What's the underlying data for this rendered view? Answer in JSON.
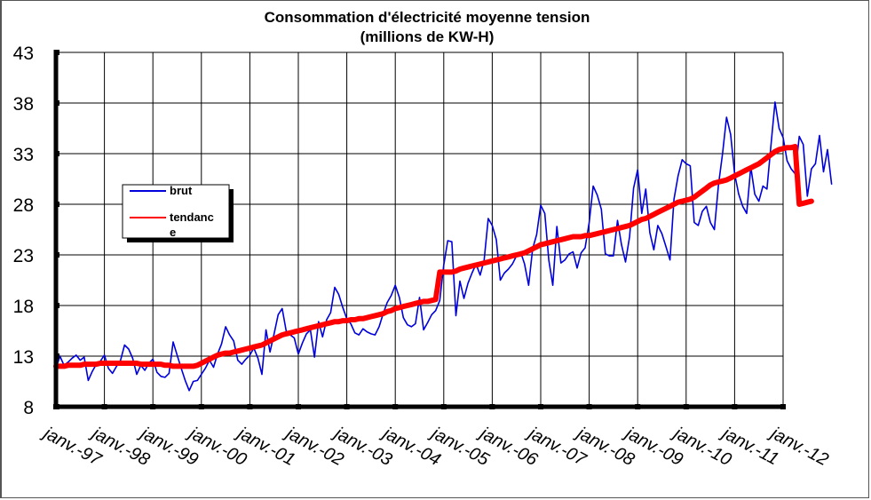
{
  "chart_data": {
    "type": "line",
    "title": "Consommation d'électricité moyenne tension",
    "subtitle": "(millions de KW-H)",
    "xlabel": "",
    "ylabel": "",
    "ylim": [
      8,
      43
    ],
    "yticks": [
      "43",
      "38",
      "33",
      "28",
      "23",
      "18",
      "13",
      "8"
    ],
    "ytick_values": [
      43,
      38,
      33,
      28,
      23,
      18,
      13,
      8
    ],
    "xticks": [
      "janv.-97",
      "janv.-98",
      "janv.-99",
      "janv.-00",
      "janv.-01",
      "janv.-02",
      "janv.-03",
      "janv.-04",
      "janv.-05",
      "janv.-06",
      "janv.-07",
      "janv.-08",
      "janv.-09",
      "janv.-10",
      "janv.-11",
      "janv.-12"
    ],
    "x_unit": "months since janv.-97",
    "xlim": [
      0,
      180
    ],
    "grid": true,
    "legend_position": "left",
    "legend": {
      "brut": "brut",
      "tendance_line1": "tendanc",
      "tendance_line2": "e"
    },
    "colors": {
      "brut": "#0000dd",
      "tendance": "#ff0000",
      "grid": "#000000"
    },
    "series": [
      {
        "name": "brut",
        "values": [
          11.8,
          13.0,
          12.1,
          12.4,
          12.8,
          13.1,
          12.6,
          12.9,
          10.6,
          11.5,
          12.2,
          12.5,
          13.1,
          11.8,
          11.3,
          12.0,
          12.6,
          14.1,
          13.7,
          12.8,
          11.2,
          12.1,
          11.6,
          12.3,
          12.7,
          11.4,
          11.0,
          10.9,
          11.3,
          14.4,
          13.1,
          11.8,
          10.6,
          9.6,
          10.5,
          10.6,
          11.2,
          11.8,
          12.6,
          11.9,
          13.2,
          14.2,
          15.9,
          15.1,
          14.5,
          12.6,
          12.2,
          12.7,
          13.1,
          13.8,
          12.8,
          11.2,
          15.6,
          13.4,
          15.2,
          17.1,
          17.7,
          15.5,
          15.1,
          14.8,
          13.2,
          14.3,
          15.2,
          15.6,
          12.9,
          16.4,
          14.9,
          16.6,
          17.3,
          19.8,
          19.1,
          17.8,
          16.7,
          16.2,
          15.3,
          15.1,
          15.7,
          15.4,
          15.2,
          15.1,
          15.9,
          17.2,
          18.3,
          19.0,
          20.0,
          18.8,
          16.8,
          16.1,
          15.9,
          16.2,
          18.8,
          15.6,
          16.3,
          17.1,
          17.5,
          18.5,
          22.0,
          24.4,
          24.3,
          17.0,
          20.4,
          18.7,
          20.2,
          21.2,
          22.1,
          21.0,
          22.5,
          26.6,
          25.9,
          24.5,
          20.5,
          21.2,
          21.6,
          22.1,
          22.9,
          23.3,
          22.1,
          20.0,
          23.6,
          25.0,
          27.9,
          27.1,
          22.5,
          20.0,
          25.8,
          22.2,
          22.5,
          23.1,
          23.3,
          21.7,
          23.2,
          23.7,
          26.2,
          29.8,
          28.9,
          27.5,
          23.1,
          22.9,
          22.9,
          26.4,
          24.0,
          22.3,
          24.8,
          29.6,
          31.4,
          27.1,
          29.5,
          25.2,
          23.5,
          25.9,
          25.1,
          23.8,
          22.5,
          28.5,
          30.8,
          32.4,
          32.0,
          31.8,
          26.2,
          25.9,
          27.3,
          27.8,
          26.2,
          25.5,
          29.9,
          33.0,
          36.6,
          34.9,
          31.0,
          29.0,
          27.8,
          27.1,
          31.7,
          29.0,
          28.3,
          29.8,
          29.5,
          33.8,
          38.1,
          35.5,
          34.6,
          32.3,
          31.5,
          31.0,
          34.7,
          33.9,
          28.8,
          31.5,
          32.0,
          34.8,
          31.2,
          33.4,
          30.0
        ]
      },
      {
        "name": "tendance",
        "values": [
          12.0,
          12.0,
          12.0,
          12.1,
          12.1,
          12.1,
          12.1,
          12.2,
          12.2,
          12.2,
          12.2,
          12.3,
          12.3,
          12.3,
          12.3,
          12.3,
          12.3,
          12.3,
          12.3,
          12.3,
          12.3,
          12.2,
          12.2,
          12.2,
          12.2,
          12.2,
          12.2,
          12.1,
          12.1,
          12.0,
          12.0,
          12.0,
          12.0,
          12.0,
          12.0,
          12.1,
          12.3,
          12.5,
          12.7,
          12.9,
          13.1,
          13.2,
          13.3,
          13.3,
          13.4,
          13.5,
          13.6,
          13.7,
          13.8,
          13.9,
          14.0,
          14.1,
          14.3,
          14.5,
          14.7,
          14.9,
          15.1,
          15.2,
          15.3,
          15.4,
          15.5,
          15.6,
          15.7,
          15.8,
          15.9,
          16.0,
          16.1,
          16.2,
          16.3,
          16.4,
          16.4,
          16.5,
          16.5,
          16.6,
          16.6,
          16.7,
          16.7,
          16.8,
          16.9,
          17.0,
          17.1,
          17.2,
          17.4,
          17.5,
          17.7,
          17.8,
          17.9,
          18.0,
          18.1,
          18.2,
          18.3,
          18.4,
          18.4,
          18.5,
          18.6,
          21.3,
          21.3,
          21.3,
          21.3,
          21.4,
          21.6,
          21.7,
          21.8,
          21.9,
          22.0,
          22.1,
          22.2,
          22.3,
          22.4,
          22.5,
          22.6,
          22.7,
          22.8,
          22.9,
          23.0,
          23.1,
          23.2,
          23.4,
          23.6,
          23.8,
          24.0,
          24.1,
          24.2,
          24.3,
          24.4,
          24.5,
          24.6,
          24.7,
          24.8,
          24.8,
          24.8,
          24.9,
          24.9,
          25.0,
          25.1,
          25.2,
          25.3,
          25.4,
          25.5,
          25.6,
          25.7,
          25.8,
          25.9,
          26.1,
          26.3,
          26.5,
          26.6,
          26.8,
          27.0,
          27.2,
          27.4,
          27.6,
          27.8,
          28.0,
          28.2,
          28.3,
          28.4,
          28.5,
          28.7,
          29.0,
          29.3,
          29.6,
          29.9,
          30.1,
          30.2,
          30.3,
          30.4,
          30.6,
          30.8,
          31.0,
          31.2,
          31.4,
          31.6,
          31.8,
          32.0,
          32.3,
          32.6,
          32.9,
          33.2,
          33.4,
          33.5,
          33.6,
          33.6,
          33.7,
          28.0,
          28.1,
          28.2,
          28.3
        ]
      }
    ]
  }
}
